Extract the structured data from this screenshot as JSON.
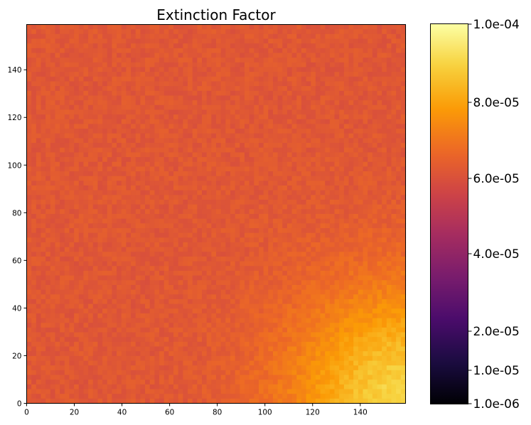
{
  "chart_data": {
    "type": "heatmap",
    "title": "Extinction Factor",
    "xlabel": "",
    "ylabel": "",
    "grid": false,
    "xlim": [
      0,
      159
    ],
    "ylim": [
      0,
      159
    ],
    "x_ticks": [
      0,
      20,
      40,
      60,
      80,
      100,
      120,
      140
    ],
    "y_ticks": [
      0,
      20,
      40,
      60,
      80,
      100,
      120,
      140
    ],
    "colormap": "inferno",
    "colorbar": {
      "position": "right",
      "min": 1e-06,
      "max": 0.0001,
      "ticks": [
        {
          "value": 1e-06,
          "label": "1.0e-06"
        },
        {
          "value": 1e-05,
          "label": "1.0e-05"
        },
        {
          "value": 2e-05,
          "label": "2.0e-05"
        },
        {
          "value": 4e-05,
          "label": "4.0e-05"
        },
        {
          "value": 6e-05,
          "label": "6.0e-05"
        },
        {
          "value": 8e-05,
          "label": "8.0e-05"
        },
        {
          "value": 0.0001,
          "label": "1.0e-04"
        }
      ],
      "colors": [
        "#000004",
        "#1b0c41",
        "#4a0c6b",
        "#781c6d",
        "#a52c60",
        "#cf4446",
        "#ed6925",
        "#fb9b06",
        "#f7d13d",
        "#fcffa4"
      ]
    },
    "field": {
      "grid_size": [
        160,
        160
      ],
      "base_value": 6.2e-05,
      "max_value_corner": "bottom-right",
      "corner_value": 9e-05,
      "noise": 2.5e-06
    }
  }
}
